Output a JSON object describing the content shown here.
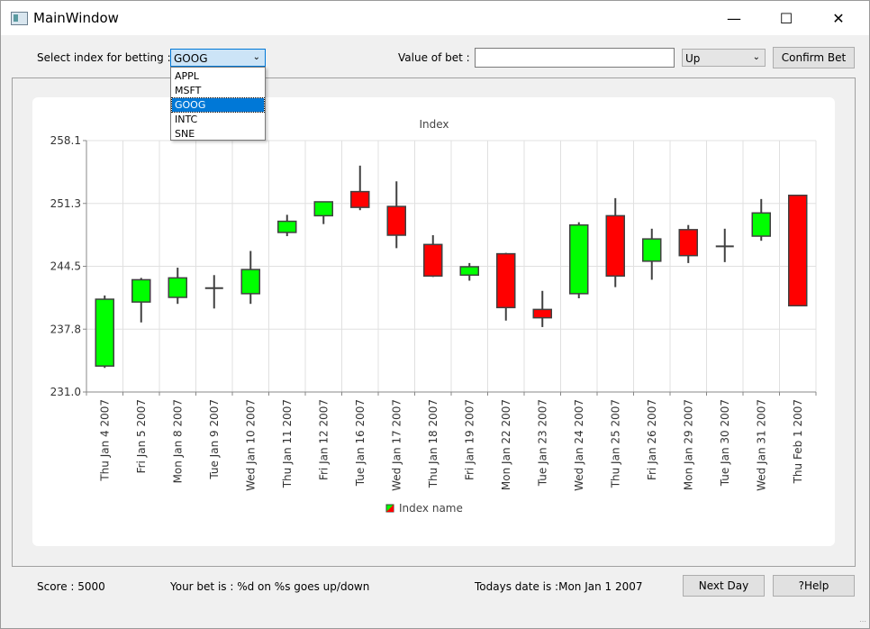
{
  "window": {
    "title": "MainWindow"
  },
  "titlebar": {
    "minimize_glyph": "—",
    "maximize_glyph": "☐",
    "close_glyph": "✕"
  },
  "toolbar": {
    "index_label": "Select index for betting :",
    "index_selected": "GOOG",
    "index_options": [
      "APPL",
      "MSFT",
      "GOOG",
      "INTC",
      "SNE"
    ],
    "value_label": "Value of bet :",
    "value_input": "",
    "direction_selected": "Up",
    "confirm_label": "Confirm Bet"
  },
  "chart_data": {
    "type": "candlestick",
    "title": "Index",
    "legend": "Index name",
    "legend_position": "bottom",
    "ylim": [
      231.0,
      258.1
    ],
    "yticks": [
      "258.1",
      "251.3",
      "244.5",
      "237.8",
      "231.0"
    ],
    "candles": [
      {
        "date": "Thu Jan 4 2007",
        "open": 233.8,
        "close": 241.0,
        "high": 241.4,
        "low": 233.6
      },
      {
        "date": "Fri Jan 5 2007",
        "open": 240.7,
        "close": 243.1,
        "high": 243.3,
        "low": 238.5
      },
      {
        "date": "Mon Jan 8 2007",
        "open": 241.2,
        "close": 243.3,
        "high": 244.4,
        "low": 240.5
      },
      {
        "date": "Tue Jan 9 2007",
        "open": 242.2,
        "close": 242.2,
        "high": 243.6,
        "low": 240.0
      },
      {
        "date": "Wed Jan 10 2007",
        "open": 241.6,
        "close": 244.2,
        "high": 246.2,
        "low": 240.5
      },
      {
        "date": "Thu Jan 11 2007",
        "open": 248.2,
        "close": 249.4,
        "high": 250.1,
        "low": 247.8
      },
      {
        "date": "Fri Jan 12 2007",
        "open": 250.0,
        "close": 251.5,
        "high": 251.5,
        "low": 249.1
      },
      {
        "date": "Tue Jan 16 2007",
        "open": 252.6,
        "close": 250.9,
        "high": 255.4,
        "low": 250.6
      },
      {
        "date": "Wed Jan 17 2007",
        "open": 251.0,
        "close": 247.9,
        "high": 253.7,
        "low": 246.5
      },
      {
        "date": "Thu Jan 18 2007",
        "open": 246.9,
        "close": 243.5,
        "high": 247.9,
        "low": 243.4
      },
      {
        "date": "Fri Jan 19 2007",
        "open": 243.6,
        "close": 244.5,
        "high": 244.9,
        "low": 243.0
      },
      {
        "date": "Mon Jan 22 2007",
        "open": 245.9,
        "close": 240.1,
        "high": 246.0,
        "low": 238.7
      },
      {
        "date": "Tue Jan 23 2007",
        "open": 239.9,
        "close": 239.0,
        "high": 241.9,
        "low": 238.0
      },
      {
        "date": "Wed Jan 24 2007",
        "open": 241.6,
        "close": 249.0,
        "high": 249.3,
        "low": 241.1
      },
      {
        "date": "Thu Jan 25 2007",
        "open": 250.0,
        "close": 243.5,
        "high": 251.9,
        "low": 242.3
      },
      {
        "date": "Fri Jan 26 2007",
        "open": 245.1,
        "close": 247.5,
        "high": 248.6,
        "low": 243.1
      },
      {
        "date": "Mon Jan 29 2007",
        "open": 248.5,
        "close": 245.7,
        "high": 249.0,
        "low": 244.9
      },
      {
        "date": "Tue Jan 30 2007",
        "open": 246.7,
        "close": 246.7,
        "high": 248.6,
        "low": 245.0
      },
      {
        "date": "Wed Jan 31 2007",
        "open": 247.8,
        "close": 250.3,
        "high": 251.8,
        "low": 247.3
      },
      {
        "date": "Thu Feb 1 2007",
        "open": 252.2,
        "close": 240.3,
        "high": 252.2,
        "low": 240.3
      }
    ],
    "colors": {
      "up": "#00ff00",
      "down": "#ff0000",
      "outline": "#404040",
      "grid": "#e0e0e0"
    }
  },
  "status": {
    "score": "Score : 5000",
    "bet": "Your bet is : %d on %s goes up/down",
    "date": "Todays date is :Mon Jan 1 2007",
    "next_day_label": "Next Day",
    "help_label": "?Help"
  }
}
